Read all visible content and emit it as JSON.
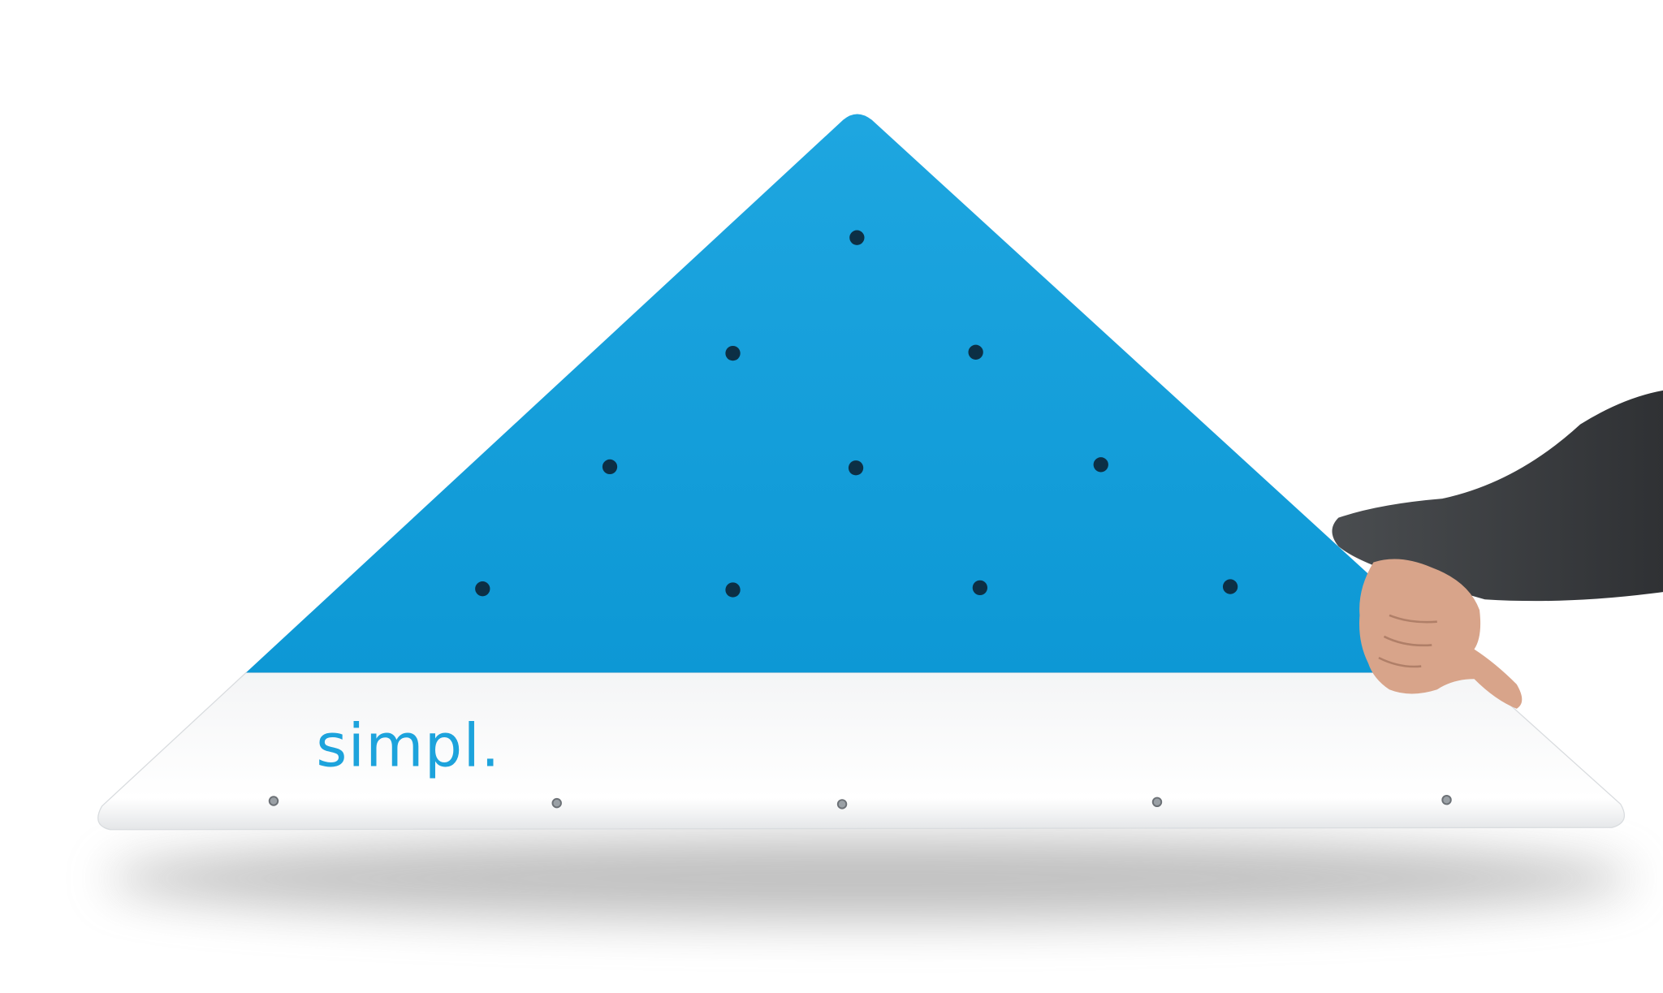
{
  "logo": "simpl."
}
